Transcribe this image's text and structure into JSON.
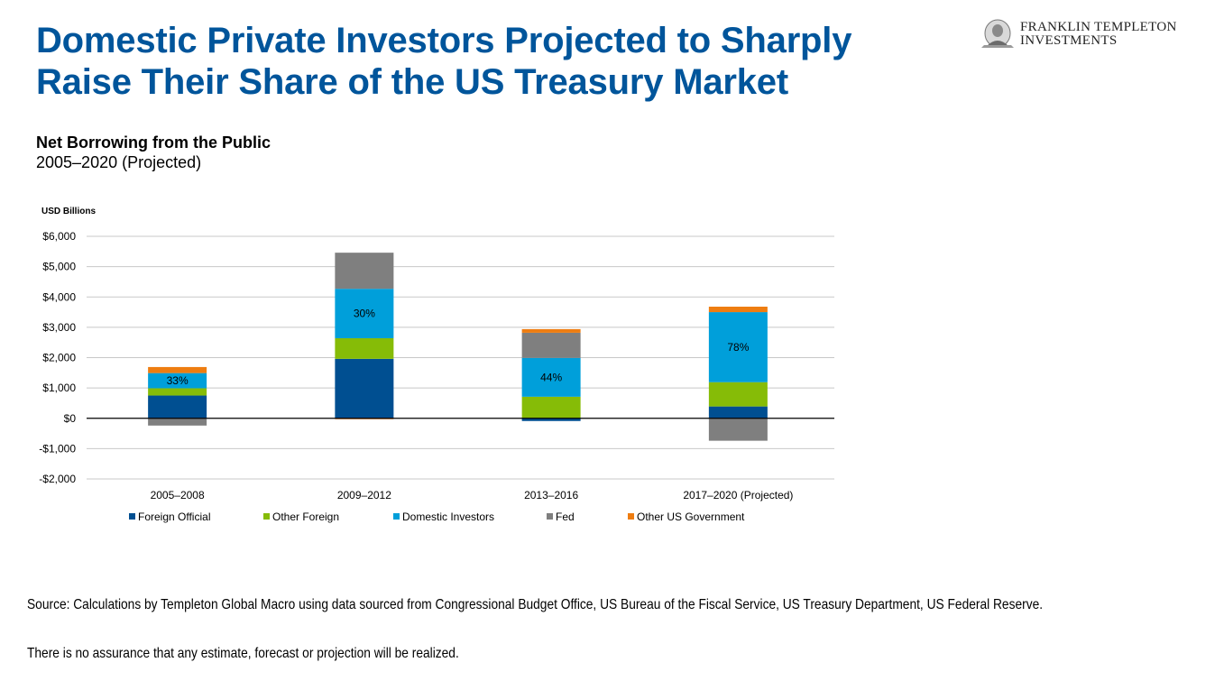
{
  "header": {
    "title_line1": "Domestic Private Investors Projected to Sharply",
    "title_line2": "Raise Their Share of the US Treasury Market",
    "logo_line1": "FRANKLIN TEMPLETON",
    "logo_line2": "INVESTMENTS",
    "logo_icon": "franklin-portrait-icon"
  },
  "colors": {
    "title": "#00559b",
    "foreign_official": "#004f91",
    "other_foreign": "#86bc07",
    "domestic_investors": "#009fda",
    "fed": "#7f7f7f",
    "other_us_government": "#ee7d11"
  },
  "chart_data": {
    "type": "bar",
    "stacked": true,
    "title": "Net Borrowing from the Public",
    "subtitle": "2005–2020 (Projected)",
    "ylabel": "USD Billions",
    "xlabel": "",
    "ylim": [
      -2000,
      6000
    ],
    "yticks": [
      6000,
      5000,
      4000,
      3000,
      2000,
      1000,
      0,
      -1000,
      -2000
    ],
    "ytick_labels": [
      "$6,000",
      "$5,000",
      "$4,000",
      "$3,000",
      "$2,000",
      "$1,000",
      "$0",
      "-$1,000",
      "-$2,000"
    ],
    "grid": true,
    "legend_position": "bottom",
    "categories": [
      "2005–2008",
      "2009–2012",
      "2013–2016",
      "2017–2020 (Projected)"
    ],
    "series": [
      {
        "name": "Foreign Official",
        "color_key": "foreign_official",
        "values": [
          750,
          1960,
          -90,
          390
        ]
      },
      {
        "name": "Other Foreign",
        "color_key": "other_foreign",
        "values": [
          240,
          680,
          710,
          800
        ]
      },
      {
        "name": "Domestic Investors",
        "color_key": "domestic_investors",
        "values": [
          500,
          1630,
          1280,
          2310
        ]
      },
      {
        "name": "Fed",
        "color_key": "fed",
        "values": [
          -240,
          1190,
          830,
          -740
        ]
      },
      {
        "name": "Other US Government",
        "color_key": "other_us_government",
        "values": [
          200,
          -30,
          120,
          180
        ]
      }
    ],
    "data_labels": {
      "series": "Domestic Investors",
      "values": [
        "33%",
        "30%",
        "44%",
        "78%"
      ]
    }
  },
  "footer": {
    "source": "Source: Calculations by Templeton Global Macro using data sourced from Congressional Budget Office, US Bureau of the Fiscal Service, US Treasury Department, US Federal Reserve.",
    "disclaimer": "There is no assurance that any estimate, forecast or projection will be realized."
  }
}
